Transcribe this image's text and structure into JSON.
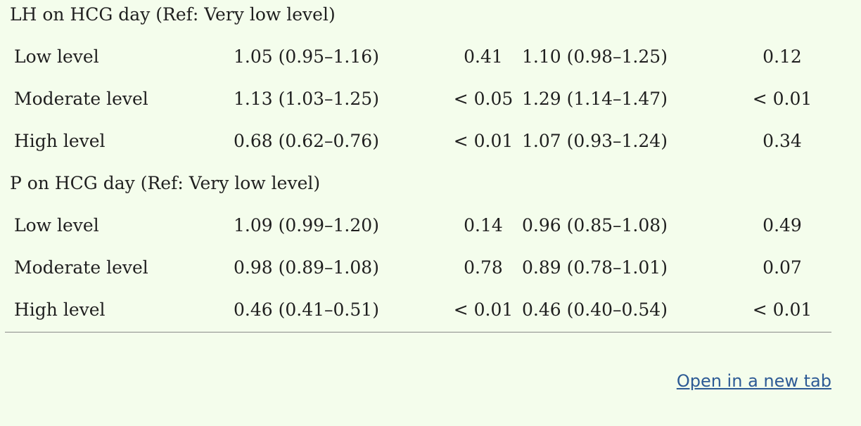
{
  "sections": [
    {
      "heading": "LH on HCG day (Ref: Very low level)",
      "rows": [
        {
          "label": "Low level",
          "ci1": "1.05 (0.95–1.16)",
          "p1": "0.41",
          "ci2": "1.10 (0.98–1.25)",
          "p2": "0.12"
        },
        {
          "label": "Moderate level",
          "ci1": "1.13 (1.03–1.25)",
          "p1": "< 0.05",
          "ci2": "1.29 (1.14–1.47)",
          "p2": "< 0.01"
        },
        {
          "label": "High level",
          "ci1": "0.68 (0.62–0.76)",
          "p1": "< 0.01",
          "ci2": "1.07 (0.93–1.24)",
          "p2": "0.34"
        }
      ]
    },
    {
      "heading": "P on HCG day (Ref: Very low level)",
      "rows": [
        {
          "label": "Low level",
          "ci1": "1.09 (0.99–1.20)",
          "p1": "0.14",
          "ci2": "0.96 (0.85–1.08)",
          "p2": "0.49"
        },
        {
          "label": "Moderate level",
          "ci1": "0.98 (0.89–1.08)",
          "p1": "0.78",
          "ci2": "0.89 (0.78–1.01)",
          "p2": "0.07"
        },
        {
          "label": "High level",
          "ci1": "0.46 (0.41–0.51)",
          "p1": "< 0.01",
          "ci2": "0.46 (0.40–0.54)",
          "p2": "< 0.01"
        }
      ]
    }
  ],
  "link": {
    "label": "Open in a new tab"
  },
  "colors": {
    "background": "#f4fdec",
    "link": "#2d5b95",
    "rule": "#8a8a8a"
  }
}
